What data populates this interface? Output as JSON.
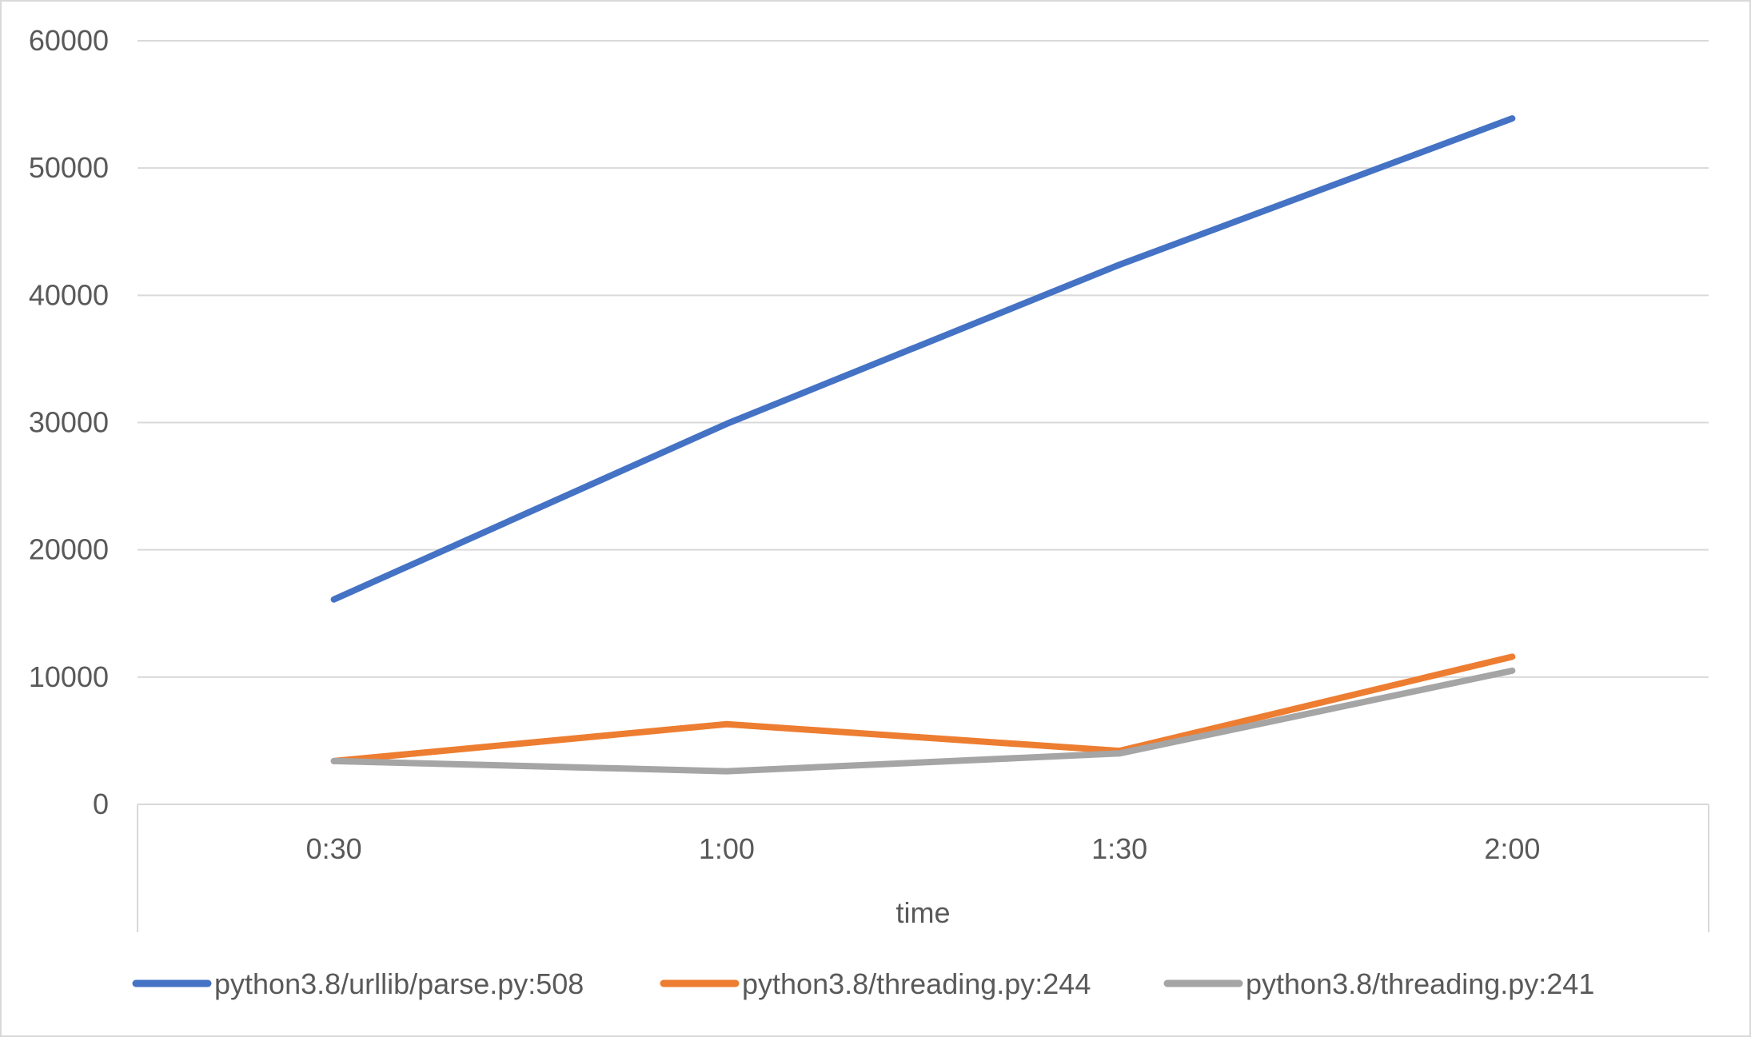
{
  "chart_data": {
    "type": "line",
    "title": "",
    "xlabel": "time",
    "ylabel": "",
    "categories": [
      "0:30",
      "1:00",
      "1:30",
      "2:00"
    ],
    "ylim": [
      0,
      60000
    ],
    "yticks": [
      0,
      10000,
      20000,
      30000,
      40000,
      50000,
      60000
    ],
    "ytick_labels": [
      "0",
      "10000",
      "20000",
      "30000",
      "40000",
      "50000",
      "60000"
    ],
    "grid": true,
    "legend_position": "bottom",
    "series": [
      {
        "name": "python3.8/urllib/parse.py:508",
        "color": "#4472c4",
        "values": [
          16100,
          29900,
          42400,
          53900
        ]
      },
      {
        "name": "python3.8/threading.py:244",
        "color": "#ed7d31",
        "values": [
          3400,
          6300,
          4200,
          11600
        ]
      },
      {
        "name": "python3.8/threading.py:241",
        "color": "#a5a5a5",
        "values": [
          3400,
          2600,
          4000,
          10500
        ]
      }
    ]
  }
}
